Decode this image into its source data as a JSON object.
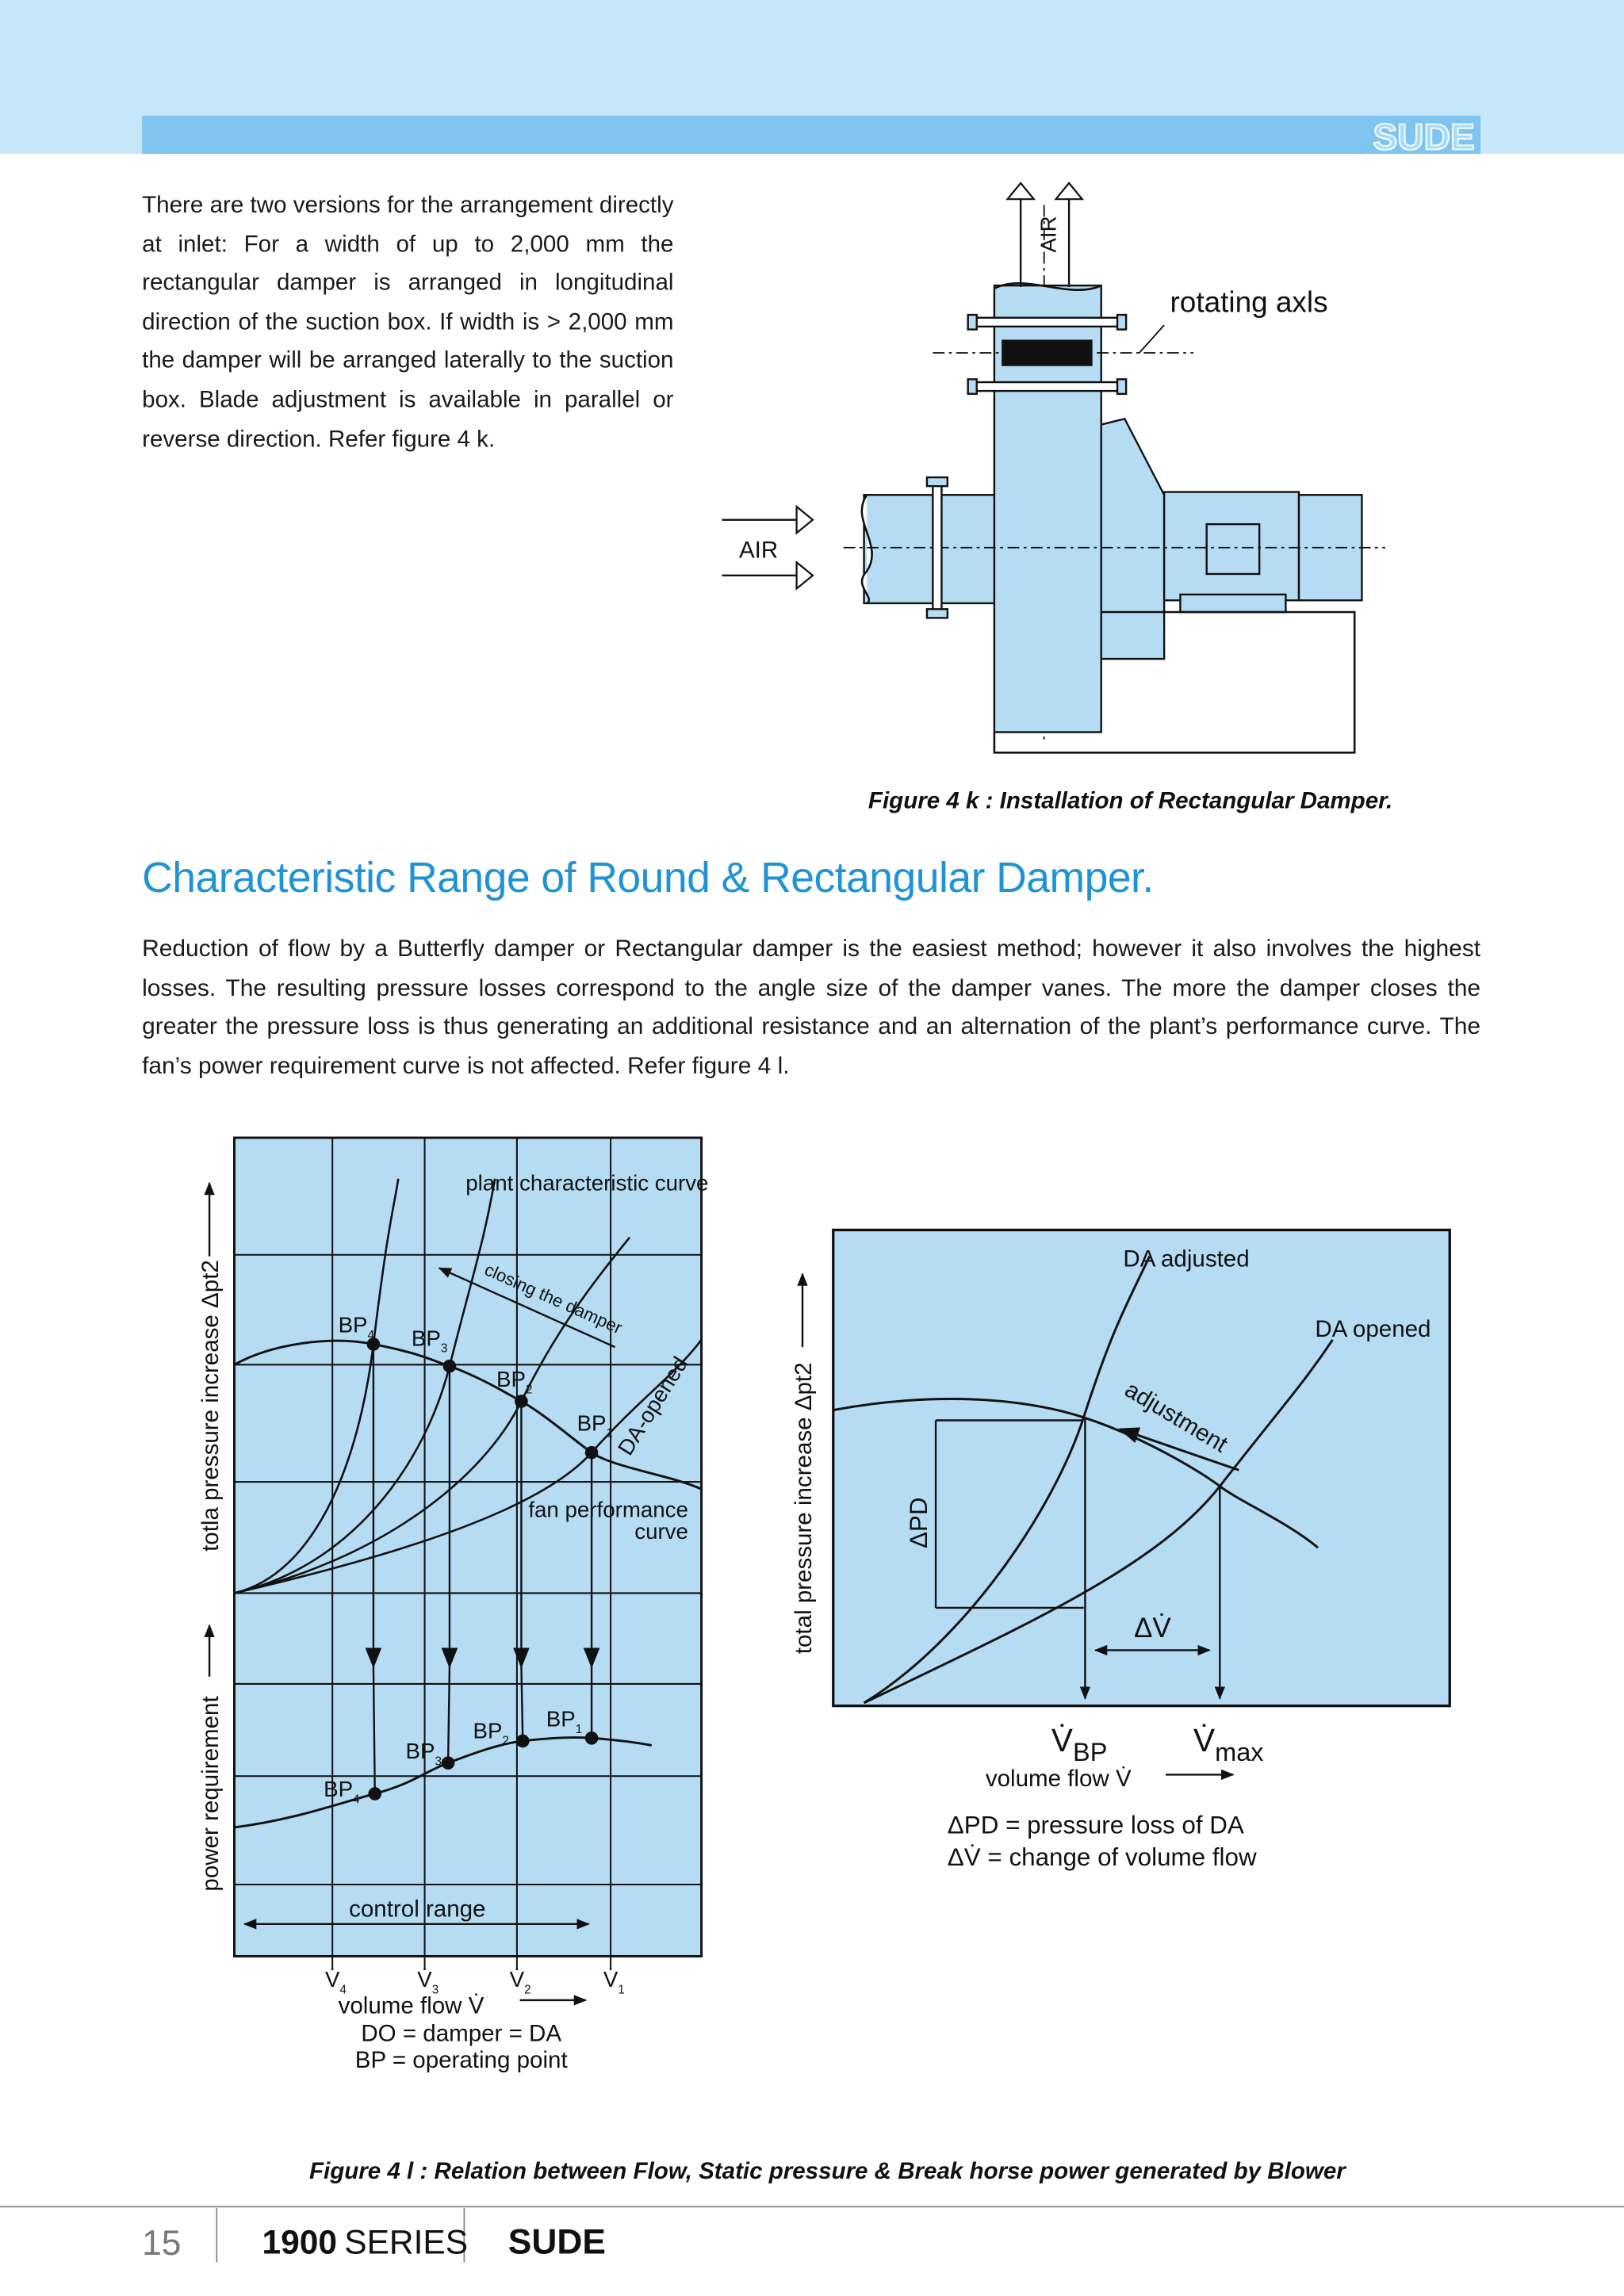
{
  "header": {
    "brand": "SUDE"
  },
  "intro": "There are two versions for the arrangement directly at inlet: For a width of up to 2,000 mm the rectangular damper is arranged in longitudinal direction of the suction box. If width is > 2,000 mm the damper will be arranged laterally to the suction box. Blade adjustment is available in parallel or reverse direction. Refer figure 4 k.",
  "figure_4k": {
    "air_outlet": "AIR",
    "air_inlet": "AIR",
    "rotating_axls": "rotating axls",
    "caption": "Figure 4 k : Installation of Rectangular Damper."
  },
  "section": {
    "title": "Characteristic Range of Round & Rectangular Damper.",
    "body": "Reduction of flow by a Butterfly damper or Rectangular damper is the easiest method; however it also involves the highest losses. The resulting pressure losses correspond to the angle size of the damper vanes. The more the damper closes the greater the pressure loss is thus generating an additional resistance and an alternation of the plant’s performance curve. The fan’s power requirement curve is not affected. Refer figure 4 l."
  },
  "figure_4l": {
    "left": {
      "y_label_pressure": "totla pressure increase Δpt2",
      "y_label_power": "power requirement",
      "plant_curve": "plant characteristic curve",
      "closing": "closing the damper",
      "da_opened": "DA-opened",
      "fan_curve": [
        "fan performance",
        "curve"
      ],
      "operating_points": [
        {
          "label": "BP",
          "sub": "4"
        },
        {
          "label": "BP",
          "sub": "3"
        },
        {
          "label": "BP",
          "sub": "2"
        },
        {
          "label": "BP",
          "sub": "1"
        }
      ],
      "power_points": [
        {
          "label": "BP",
          "sub": "4"
        },
        {
          "label": "BP",
          "sub": "3"
        },
        {
          "label": "BP",
          "sub": "2"
        },
        {
          "label": "BP",
          "sub": "1"
        }
      ],
      "control_range": "control range",
      "x_ticks": [
        {
          "label": "V̇",
          "sub": "4"
        },
        {
          "label": "V̇",
          "sub": "3"
        },
        {
          "label": "V̇",
          "sub": "2"
        },
        {
          "label": "V̇",
          "sub": "1"
        }
      ],
      "x_label": "volume flow V̇",
      "legend": [
        "DO = damper = DA",
        "BP = operating point"
      ]
    },
    "right": {
      "y_label": "total pressure increase  Δpt2",
      "da_adjusted": "DA adjusted",
      "da_opened": "DA opened",
      "adjustment": "adjustment",
      "delta_pd": "ΔPD",
      "delta_v": "ΔV̇",
      "v_bp": {
        "label": "V̇",
        "sub": "BP"
      },
      "v_max": {
        "label": "V̇",
        "sub": "max"
      },
      "x_label": "volume flow V̇",
      "legend": [
        "ΔPD = pressure loss of DA",
        "ΔV̇  = change of volume flow"
      ]
    },
    "caption": "Figure 4 l : Relation between Flow, Static pressure & Break horse power generated by Blower"
  },
  "footer": {
    "page": "15",
    "series_number": "1900",
    "series": "SERIES",
    "brand": "SUDE"
  }
}
